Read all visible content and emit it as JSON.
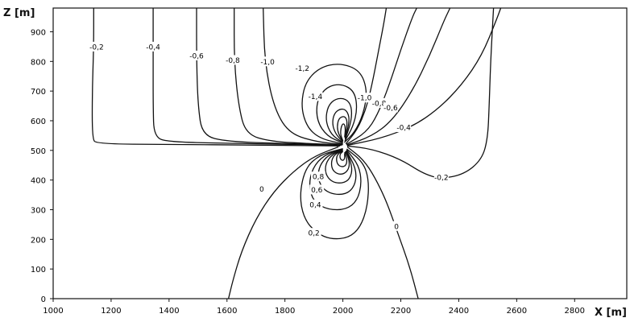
{
  "chart_data": {
    "type": "contour",
    "xlabel": "X [m]",
    "ylabel": "Z [m]",
    "xlim": [
      1000,
      2980
    ],
    "ylim": [
      0,
      980
    ],
    "x_ticks": [
      1000,
      1200,
      1400,
      1600,
      1800,
      2000,
      2200,
      2400,
      2600,
      2800
    ],
    "y_ticks": [
      0,
      100,
      200,
      300,
      400,
      500,
      600,
      700,
      800,
      900
    ],
    "grid": false,
    "contours": [
      {
        "label": "-0,2",
        "label_at": [
          1150,
          850
        ],
        "points": [
          [
            1140,
            980
          ],
          [
            1140,
            850
          ],
          [
            1135,
            700
          ],
          [
            1135,
            540
          ],
          [
            1150,
            522
          ],
          [
            1400,
            520
          ],
          [
            1700,
            518
          ],
          [
            1900,
            516
          ],
          [
            1990,
            515
          ]
        ]
      },
      {
        "label": "-0,4",
        "label_at": [
          1345,
          850
        ],
        "points": [
          [
            1345,
            980
          ],
          [
            1345,
            800
          ],
          [
            1345,
            650
          ],
          [
            1348,
            545
          ],
          [
            1400,
            528
          ],
          [
            1650,
            523
          ],
          [
            1900,
            519
          ],
          [
            1995,
            517
          ]
        ]
      },
      {
        "label": "-0,6",
        "label_at": [
          1495,
          820
        ],
        "points": [
          [
            1495,
            980
          ],
          [
            1495,
            800
          ],
          [
            1500,
            650
          ],
          [
            1515,
            550
          ],
          [
            1600,
            530
          ],
          [
            1800,
            523
          ],
          [
            1995,
            518
          ]
        ]
      },
      {
        "label": "-0,8",
        "label_at": [
          1620,
          805
        ],
        "points": [
          [
            1625,
            980
          ],
          [
            1625,
            800
          ],
          [
            1640,
            650
          ],
          [
            1665,
            555
          ],
          [
            1750,
            530
          ],
          [
            1900,
            522
          ],
          [
            2000,
            519
          ]
        ]
      },
      {
        "label": "-1,0",
        "label_at": [
          1740,
          800
        ],
        "points": [
          [
            1725,
            980
          ],
          [
            1730,
            800
          ],
          [
            1760,
            650
          ],
          [
            1810,
            560
          ],
          [
            1900,
            530
          ],
          [
            2000,
            520
          ]
        ]
      },
      {
        "label": "-1,2",
        "label_at": [
          1860,
          778
        ],
        "points": [
          [
            2000,
            522
          ],
          [
            1920,
            540
          ],
          [
            1875,
            580
          ],
          [
            1855,
            650
          ],
          [
            1870,
            730
          ],
          [
            1920,
            780
          ],
          [
            1990,
            795
          ],
          [
            2060,
            770
          ],
          [
            2085,
            700
          ],
          [
            2070,
            620
          ],
          [
            2040,
            560
          ],
          [
            2005,
            527
          ]
        ]
      },
      {
        "label": "-1,4",
        "label_at": [
          1905,
          683
        ],
        "points": [
          [
            2000,
            525
          ],
          [
            1945,
            548
          ],
          [
            1910,
            600
          ],
          [
            1910,
            670
          ],
          [
            1945,
            715
          ],
          [
            1995,
            725
          ],
          [
            2040,
            700
          ],
          [
            2050,
            640
          ],
          [
            2035,
            580
          ],
          [
            2007,
            532
          ]
        ]
      },
      {
        "label": "",
        "points": [
          [
            2000,
            527
          ],
          [
            1960,
            552
          ],
          [
            1940,
            600
          ],
          [
            1948,
            650
          ],
          [
            1975,
            675
          ],
          [
            2010,
            675
          ],
          [
            2030,
            650
          ],
          [
            2030,
            600
          ],
          [
            2008,
            537
          ]
        ]
      },
      {
        "label": "",
        "points": [
          [
            2000,
            529
          ],
          [
            1975,
            555
          ],
          [
            1963,
            590
          ],
          [
            1970,
            625
          ],
          [
            1990,
            640
          ],
          [
            2010,
            638
          ],
          [
            2022,
            615
          ],
          [
            2020,
            585
          ],
          [
            2008,
            540
          ]
        ]
      },
      {
        "label": "",
        "points": [
          [
            2000,
            531
          ],
          [
            1985,
            555
          ],
          [
            1980,
            580
          ],
          [
            1985,
            605
          ],
          [
            1998,
            615
          ],
          [
            2010,
            612
          ],
          [
            2015,
            595
          ],
          [
            2012,
            570
          ],
          [
            2007,
            542
          ]
        ]
      },
      {
        "label": "",
        "points": [
          [
            2000,
            533
          ],
          [
            1992,
            552
          ],
          [
            1993,
            575
          ],
          [
            1999,
            590
          ],
          [
            2006,
            588
          ],
          [
            2009,
            570
          ],
          [
            2006,
            545
          ]
        ]
      },
      {
        "label": "-1,0",
        "label_at": [
          2075,
          678
        ],
        "points": [
          [
            2010,
            522
          ],
          [
            2050,
            570
          ],
          [
            2080,
            640
          ],
          [
            2100,
            720
          ],
          [
            2120,
            820
          ],
          [
            2140,
            920
          ],
          [
            2150,
            980
          ]
        ]
      },
      {
        "label": "-0,8",
        "label_at": [
          2125,
          660
        ],
        "points": [
          [
            2012,
            520
          ],
          [
            2080,
            560
          ],
          [
            2120,
            620
          ],
          [
            2160,
            720
          ],
          [
            2200,
            840
          ],
          [
            2240,
            950
          ],
          [
            2255,
            980
          ]
        ]
      },
      {
        "label": "-0,6",
        "label_at": [
          2165,
          645
        ],
        "points": [
          [
            2013,
            518
          ],
          [
            2100,
            548
          ],
          [
            2170,
            600
          ],
          [
            2240,
            700
          ],
          [
            2300,
            820
          ],
          [
            2350,
            940
          ],
          [
            2370,
            980
          ]
        ]
      },
      {
        "label": "-0,4",
        "label_at": [
          2210,
          578
        ],
        "points": [
          [
            2015,
            517
          ],
          [
            2130,
            540
          ],
          [
            2240,
            580
          ],
          [
            2330,
            640
          ],
          [
            2410,
            720
          ],
          [
            2480,
            820
          ],
          [
            2530,
            940
          ],
          [
            2545,
            980
          ]
        ]
      },
      {
        "label": "-0,2",
        "label_at": [
          2340,
          410
        ],
        "points": [
          [
            2015,
            515
          ],
          [
            2100,
            505
          ],
          [
            2200,
            470
          ],
          [
            2280,
            420
          ],
          [
            2340,
            404
          ],
          [
            2420,
            420
          ],
          [
            2480,
            470
          ],
          [
            2500,
            540
          ],
          [
            2505,
            650
          ],
          [
            2510,
            800
          ],
          [
            2520,
            980
          ]
        ]
      },
      {
        "label": "0",
        "label_at": [
          1720,
          370
        ],
        "points": [
          [
            1985,
            512
          ],
          [
            1900,
            480
          ],
          [
            1830,
            430
          ],
          [
            1760,
            360
          ],
          [
            1700,
            270
          ],
          [
            1650,
            160
          ],
          [
            1620,
            60
          ],
          [
            1605,
            0
          ]
        ]
      },
      {
        "label": "0",
        "label_at": [
          2185,
          245
        ],
        "points": [
          [
            2015,
            512
          ],
          [
            2070,
            470
          ],
          [
            2110,
            410
          ],
          [
            2150,
            330
          ],
          [
            2190,
            220
          ],
          [
            2230,
            110
          ],
          [
            2260,
            0
          ]
        ]
      },
      {
        "label": "0,2",
        "label_at": [
          1900,
          222
        ],
        "points": [
          [
            2000,
            506
          ],
          [
            1920,
            485
          ],
          [
            1870,
            440
          ],
          [
            1850,
            350
          ],
          [
            1865,
            270
          ],
          [
            1910,
            220
          ],
          [
            1960,
            200
          ],
          [
            2020,
            205
          ],
          [
            2060,
            240
          ],
          [
            2085,
            310
          ],
          [
            2090,
            400
          ],
          [
            2070,
            460
          ],
          [
            2013,
            505
          ]
        ]
      },
      {
        "label": "0,4",
        "label_at": [
          1905,
          318
        ],
        "points": [
          [
            2000,
            505
          ],
          [
            1935,
            485
          ],
          [
            1895,
            440
          ],
          [
            1882,
            380
          ],
          [
            1900,
            325
          ],
          [
            1950,
            300
          ],
          [
            2010,
            300
          ],
          [
            2050,
            330
          ],
          [
            2065,
            390
          ],
          [
            2055,
            450
          ],
          [
            2013,
            502
          ]
        ]
      },
      {
        "label": "0,6",
        "label_at": [
          1910,
          368
        ],
        "points": [
          [
            2000,
            503
          ],
          [
            1950,
            485
          ],
          [
            1920,
            450
          ],
          [
            1912,
            405
          ],
          [
            1935,
            365
          ],
          [
            1975,
            350
          ],
          [
            2020,
            355
          ],
          [
            2045,
            390
          ],
          [
            2045,
            440
          ],
          [
            2012,
            500
          ]
        ]
      },
      {
        "label": "0,8",
        "label_at": [
          1915,
          412
        ],
        "points": [
          [
            2000,
            502
          ],
          [
            1962,
            486
          ],
          [
            1940,
            455
          ],
          [
            1940,
            420
          ],
          [
            1960,
            395
          ],
          [
            1990,
            388
          ],
          [
            2020,
            398
          ],
          [
            2033,
            430
          ],
          [
            2025,
            470
          ],
          [
            2010,
            498
          ]
        ]
      },
      {
        "label": "",
        "points": [
          [
            2000,
            500
          ],
          [
            1972,
            487
          ],
          [
            1960,
            465
          ],
          [
            1962,
            437
          ],
          [
            1980,
            420
          ],
          [
            2005,
            420
          ],
          [
            2022,
            440
          ],
          [
            2022,
            468
          ],
          [
            2008,
            496
          ]
        ]
      },
      {
        "label": "",
        "points": [
          [
            2000,
            498
          ],
          [
            1982,
            488
          ],
          [
            1977,
            470
          ],
          [
            1982,
            452
          ],
          [
            1995,
            444
          ],
          [
            2010,
            448
          ],
          [
            2015,
            466
          ],
          [
            2006,
            494
          ]
        ]
      },
      {
        "label": "",
        "points": [
          [
            2000,
            496
          ],
          [
            1990,
            488
          ],
          [
            1990,
            473
          ],
          [
            1998,
            465
          ],
          [
            2006,
            470
          ],
          [
            2006,
            490
          ]
        ]
      }
    ]
  }
}
